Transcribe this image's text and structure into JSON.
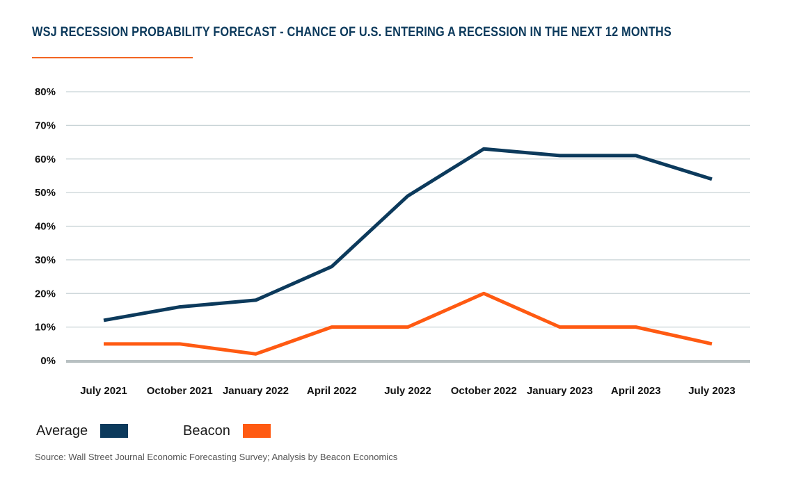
{
  "title": "WSJ RECESSION PROBABILITY FORECAST - CHANCE OF U.S. ENTERING A RECESSION IN THE NEXT 12 MONTHS",
  "source": "Source: Wall Street Journal Economic Forecasting Survey; Analysis by Beacon Economics",
  "colors": {
    "title": "#0c3a5c",
    "accent_rule": "#f26522",
    "average": "#0c3a5c",
    "beacon": "#ff5a12",
    "grid": "#c8d3d6",
    "baseline": "#b8c0c2"
  },
  "legend": {
    "items": [
      {
        "label": "Average",
        "color": "#0c3a5c"
      },
      {
        "label": "Beacon",
        "color": "#ff5a12"
      }
    ]
  },
  "chart_data": {
    "type": "line",
    "title": "WSJ RECESSION PROBABILITY FORECAST - CHANCE OF U.S. ENTERING A RECESSION IN THE NEXT 12 MONTHS",
    "xlabel": "",
    "ylabel": "",
    "categories": [
      "July 2021",
      "October 2021",
      "January 2022",
      "April 2022",
      "July 2022",
      "October 2022",
      "January 2023",
      "April 2023",
      "July 2023"
    ],
    "ylim": [
      0,
      80
    ],
    "yticks": [
      0,
      10,
      20,
      30,
      40,
      50,
      60,
      70,
      80
    ],
    "ytick_labels": [
      "0%",
      "10%",
      "20%",
      "30%",
      "40%",
      "50%",
      "60%",
      "70%",
      "80%"
    ],
    "grid": true,
    "legend_position": "bottom-left",
    "series": [
      {
        "name": "Average",
        "color": "#0c3a5c",
        "values": [
          12,
          16,
          18,
          28,
          49,
          63,
          61,
          61,
          54
        ]
      },
      {
        "name": "Beacon",
        "color": "#ff5a12",
        "values": [
          5,
          5,
          2,
          10,
          10,
          20,
          10,
          10,
          5
        ]
      }
    ]
  }
}
